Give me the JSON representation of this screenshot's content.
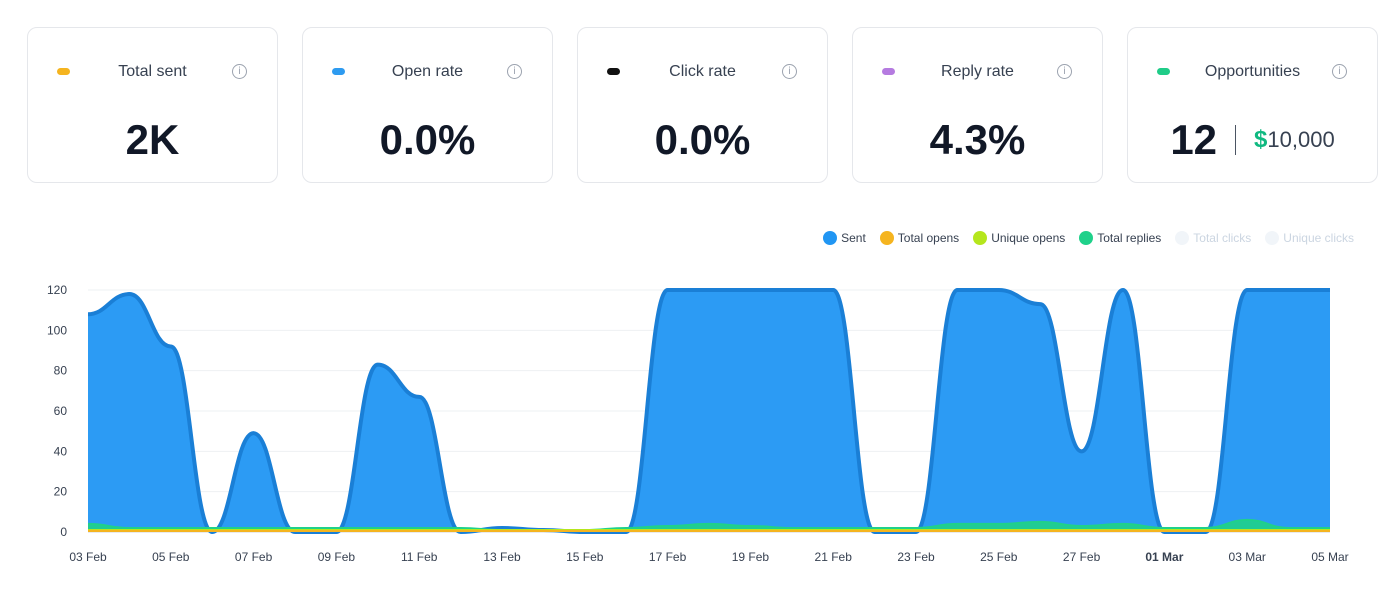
{
  "cards": [
    {
      "label": "Total sent",
      "value": "2K",
      "color": "#f5b41f"
    },
    {
      "label": "Open rate",
      "value": "0.0%",
      "color": "#2e9bf0"
    },
    {
      "label": "Click rate",
      "value": "0.0%",
      "color": "#111111"
    },
    {
      "label": "Reply rate",
      "value": "4.3%",
      "color": "#b57be0"
    },
    {
      "label": "Opportunities",
      "count": "12",
      "money_symbol": "$",
      "money_value": "10,000",
      "color": "#1fcc88"
    }
  ],
  "info_icon_glyph": "i",
  "legend": [
    {
      "label": "Sent",
      "color": "#2196f3",
      "dim": false
    },
    {
      "label": "Total opens",
      "color": "#f5b41f",
      "dim": false
    },
    {
      "label": "Unique opens",
      "color": "#b5e61d",
      "dim": false
    },
    {
      "label": "Total replies",
      "color": "#1fd18a",
      "dim": false
    },
    {
      "label": "Total clicks",
      "color": "#f1f5f9",
      "dim": true
    },
    {
      "label": "Unique clicks",
      "color": "#f1f5f9",
      "dim": true
    }
  ],
  "chart_data": {
    "type": "area",
    "x_tick_labels": [
      "03 Feb",
      "05 Feb",
      "07 Feb",
      "09 Feb",
      "11 Feb",
      "13 Feb",
      "15 Feb",
      "17 Feb",
      "19 Feb",
      "21 Feb",
      "23 Feb",
      "25 Feb",
      "27 Feb",
      "01 Mar",
      "03 Mar",
      "05 Mar"
    ],
    "bold_tick_label": "01 Mar",
    "y_ticks": [
      0,
      20,
      40,
      60,
      80,
      100,
      120
    ],
    "ylim": [
      0,
      120
    ],
    "grid": true,
    "legend_position": "top-right",
    "series": [
      {
        "name": "Sent",
        "color": "#2196f3",
        "fill": "#2196f3",
        "points": [
          [
            "03 Feb",
            108
          ],
          [
            "04 Feb",
            118
          ],
          [
            "05 Feb",
            92
          ],
          [
            "06 Feb",
            0
          ],
          [
            "07 Feb",
            49
          ],
          [
            "08 Feb",
            0
          ],
          [
            "09 Feb",
            0
          ],
          [
            "10 Feb",
            83
          ],
          [
            "11 Feb",
            67
          ],
          [
            "12 Feb",
            0
          ],
          [
            "13 Feb",
            2
          ],
          [
            "14 Feb",
            1
          ],
          [
            "15 Feb",
            0
          ],
          [
            "16 Feb",
            0
          ],
          [
            "17 Feb",
            120
          ],
          [
            "18 Feb",
            120
          ],
          [
            "19 Feb",
            120
          ],
          [
            "20 Feb",
            120
          ],
          [
            "21 Feb",
            120
          ],
          [
            "22 Feb",
            0
          ],
          [
            "23 Feb",
            0
          ],
          [
            "24 Feb",
            120
          ],
          [
            "25 Feb",
            120
          ],
          [
            "26 Feb",
            113
          ],
          [
            "27 Feb",
            40
          ],
          [
            "28 Feb",
            120
          ],
          [
            "01 Mar",
            0
          ],
          [
            "02 Mar",
            0
          ],
          [
            "03 Mar",
            120
          ],
          [
            "04 Mar",
            120
          ],
          [
            "05 Mar",
            120
          ]
        ]
      },
      {
        "name": "Total replies",
        "color": "#1fd18a",
        "fill": "#1fd18a",
        "points": [
          [
            "03 Feb",
            4
          ],
          [
            "04 Feb",
            2
          ],
          [
            "05 Feb",
            2
          ],
          [
            "06 Feb",
            2
          ],
          [
            "07 Feb",
            2
          ],
          [
            "08 Feb",
            2
          ],
          [
            "09 Feb",
            2
          ],
          [
            "10 Feb",
            2
          ],
          [
            "11 Feb",
            2
          ],
          [
            "12 Feb",
            2
          ],
          [
            "13 Feb",
            1
          ],
          [
            "14 Feb",
            1
          ],
          [
            "15 Feb",
            1
          ],
          [
            "16 Feb",
            2
          ],
          [
            "17 Feb",
            3
          ],
          [
            "18 Feb",
            4
          ],
          [
            "19 Feb",
            3
          ],
          [
            "20 Feb",
            2
          ],
          [
            "21 Feb",
            2
          ],
          [
            "22 Feb",
            2
          ],
          [
            "23 Feb",
            2
          ],
          [
            "24 Feb",
            4
          ],
          [
            "25 Feb",
            4
          ],
          [
            "26 Feb",
            5
          ],
          [
            "27 Feb",
            3
          ],
          [
            "28 Feb",
            4
          ],
          [
            "01 Mar",
            2
          ],
          [
            "02 Mar",
            2
          ],
          [
            "03 Mar",
            6
          ],
          [
            "04 Mar",
            2
          ],
          [
            "05 Mar",
            2
          ]
        ]
      },
      {
        "name": "Unique opens",
        "color": "#b5e61d",
        "fill": "#b5e61d",
        "points": [
          [
            "03 Feb",
            1
          ],
          [
            "05 Mar",
            1
          ]
        ]
      },
      {
        "name": "Total opens",
        "color": "#f5b41f",
        "fill": "#f5b41f",
        "points": [
          [
            "03 Feb",
            0.5
          ],
          [
            "05 Mar",
            0.5
          ]
        ]
      }
    ]
  }
}
